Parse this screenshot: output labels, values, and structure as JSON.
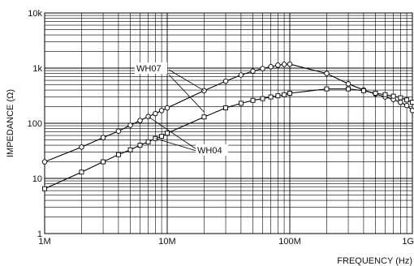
{
  "chart_data": {
    "type": "line",
    "xlabel": "FREQUENCY (Hz)",
    "ylabel": "IMPEDANCE (Ω)",
    "x_scale": "log",
    "y_scale": "log",
    "xlim": [
      1000000,
      1000000000
    ],
    "ylim": [
      1,
      10000
    ],
    "grid": true,
    "x_ticks": [
      {
        "value": 1000000,
        "label": "1M"
      },
      {
        "value": 10000000,
        "label": "10M"
      },
      {
        "value": 100000000,
        "label": "100M"
      },
      {
        "value": 1000000000,
        "label": "1G"
      }
    ],
    "y_ticks": [
      {
        "value": 1,
        "label": "1"
      },
      {
        "value": 10,
        "label": "10"
      },
      {
        "value": 100,
        "label": "100"
      },
      {
        "value": 1000,
        "label": "1k"
      },
      {
        "value": 10000,
        "label": "10k"
      }
    ],
    "series": [
      {
        "name": "WH07",
        "marker": "circle",
        "x": [
          1000000,
          2000000,
          3000000,
          4000000,
          5000000,
          6000000,
          7000000,
          8000000,
          9000000,
          10000000,
          20000000,
          30000000,
          40000000,
          50000000,
          60000000,
          70000000,
          80000000,
          90000000,
          100000000,
          200000000,
          300000000,
          400000000,
          500000000,
          600000000,
          700000000,
          800000000,
          900000000,
          1000000000
        ],
        "y": [
          20,
          37,
          55,
          72,
          92,
          112,
          132,
          150,
          170,
          190,
          390,
          580,
          750,
          880,
          980,
          1060,
          1130,
          1170,
          1180,
          800,
          520,
          400,
          340,
          300,
          270,
          240,
          210,
          170
        ]
      },
      {
        "name": "WH04",
        "marker": "square",
        "x": [
          1000000,
          2000000,
          3000000,
          4000000,
          5000000,
          6000000,
          7000000,
          8000000,
          9000000,
          10000000,
          20000000,
          30000000,
          40000000,
          50000000,
          60000000,
          70000000,
          80000000,
          90000000,
          100000000,
          200000000,
          300000000,
          400000000,
          500000000,
          600000000,
          700000000,
          800000000,
          900000000,
          1000000000
        ],
        "y": [
          6.5,
          13,
          20,
          27,
          33,
          40,
          46,
          53,
          58,
          66,
          130,
          190,
          230,
          260,
          280,
          300,
          315,
          330,
          350,
          420,
          420,
          390,
          350,
          330,
          310,
          290,
          265,
          240
        ]
      }
    ],
    "annotations": [
      {
        "text": "WH07",
        "series": "WH07"
      },
      {
        "text": "WH04",
        "series": "WH04"
      }
    ]
  }
}
